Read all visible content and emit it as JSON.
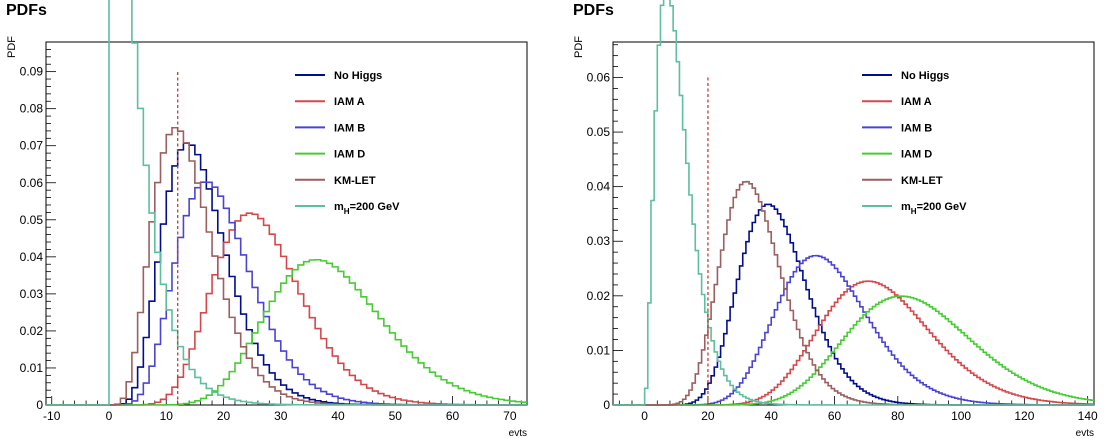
{
  "chart_data": [
    {
      "type": "line",
      "title": "PDFs",
      "xlabel": "evts",
      "ylabel": "PDF",
      "xlim": [
        -11,
        73
      ],
      "ylim": [
        0,
        0.098
      ],
      "xticks": [
        -10,
        0,
        10,
        20,
        30,
        40,
        50,
        60,
        70
      ],
      "yticks": [
        0,
        0.01,
        0.02,
        0.03,
        0.04,
        0.05,
        0.06,
        0.07,
        0.08,
        0.09
      ],
      "ytick_labels": [
        "0",
        "0.01",
        "0.02",
        "0.03",
        "0.04",
        "0.05",
        "0.06",
        "0.07",
        "0.08",
        "0.09"
      ],
      "grid": false,
      "step": true,
      "bin_width": 1,
      "cut_line": {
        "x": 12,
        "ymax": 0.09,
        "color": "#cc3b2e"
      },
      "legend_position": "top-right",
      "series": [
        {
          "name": "No Higgs",
          "color": "#000e8c",
          "dist": "gamma",
          "mean": 16,
          "var": 36
        },
        {
          "name": "IAM A",
          "color": "#d6474a",
          "dist": "gamma",
          "mean": 27,
          "var": 64
        },
        {
          "name": "IAM B",
          "color": "#4a44d4",
          "dist": "gamma",
          "mean": 19.5,
          "var": 49
        },
        {
          "name": "IAM D",
          "color": "#46cc33",
          "dist": "gamma",
          "mean": 39,
          "var": 110
        },
        {
          "name": "KM-LET",
          "color": "#9c5f5f",
          "dist": "gamma",
          "mean": 14,
          "var": 33
        },
        {
          "name_main": "m",
          "name_sub": "H",
          "name_rest": "=200 GeV",
          "color": "#5dbf9b",
          "dist": "gamma",
          "mean": 5,
          "var": 18
        }
      ]
    },
    {
      "type": "line",
      "title": "PDFs",
      "xlabel": "evts",
      "ylabel": "PDF",
      "xlim": [
        -10,
        142
      ],
      "ylim": [
        0,
        0.0665
      ],
      "xticks": [
        0,
        20,
        40,
        60,
        80,
        100,
        120,
        140
      ],
      "yticks": [
        0,
        0.01,
        0.02,
        0.03,
        0.04,
        0.05,
        0.06
      ],
      "ytick_labels": [
        "0",
        "0.01",
        "0.02",
        "0.03",
        "0.04",
        "0.05",
        "0.06"
      ],
      "grid": false,
      "step": true,
      "bin_width": 1,
      "cut_line": {
        "x": 20,
        "ymax": 0.06,
        "color": "#cc3b2e"
      },
      "legend_position": "top-right",
      "series": [
        {
          "name": "No Higgs",
          "color": "#000e8c",
          "dist": "gamma",
          "mean": 42,
          "var": 125
        },
        {
          "name": "IAM A",
          "color": "#d6474a",
          "dist": "gamma",
          "mean": 75,
          "var": 325
        },
        {
          "name": "IAM B",
          "color": "#4a44d4",
          "dist": "gamma",
          "mean": 58,
          "var": 225
        },
        {
          "name": "IAM D",
          "color": "#46cc33",
          "dist": "gamma",
          "mean": 86,
          "var": 420
        },
        {
          "name": "KM-LET",
          "color": "#9c5f5f",
          "dist": "gamma",
          "mean": 35,
          "var": 102
        },
        {
          "name_main": "m",
          "name_sub": "H",
          "name_rest": "=200 GeV",
          "color": "#5dbf9b",
          "dist": "gamma",
          "mean": 10.5,
          "var": 38
        }
      ]
    }
  ]
}
